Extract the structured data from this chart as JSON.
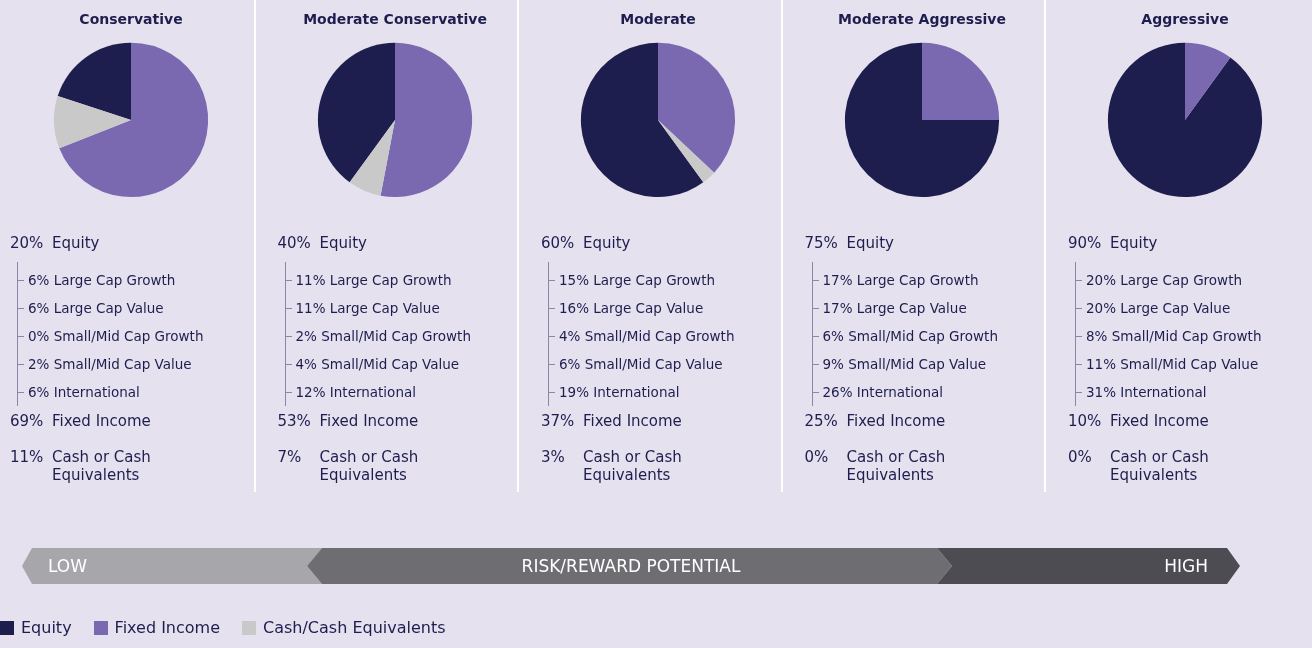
{
  "chart_data": [
    {
      "type": "pie",
      "title": "Conservative",
      "categories": [
        "Equity",
        "Fixed Income",
        "Cash/Cash Equivalents"
      ],
      "values": [
        20,
        69,
        11
      ],
      "colors": [
        "#1d1e4e",
        "#7a68b0",
        "#c9c9c9"
      ],
      "legend": "bottom",
      "annotations": [
        "20% Equity",
        "6% Large Cap Growth",
        "6% Large Cap Value",
        "0% Small/Mid Cap Growth",
        "2% Small/Mid Cap Value",
        "6% International",
        "69% Fixed Income",
        "11% Cash or Cash Equivalents"
      ]
    },
    {
      "type": "pie",
      "title": "Moderate Conservative",
      "categories": [
        null,
        null,
        null
      ],
      "values": [
        40,
        53,
        7
      ],
      "colors": [
        "#1d1e4e",
        "#7a68b0",
        "#c9c9c9"
      ],
      "annotations": [
        "40% Equity",
        "11% Large Cap Growth",
        "11% Large Cap Value",
        "2% Small/Mid Cap Growth",
        "4% Small/Mid Cap Value",
        "12% International",
        "53% Fixed Income",
        "7% Cash or Cash Equivalents"
      ]
    },
    {
      "type": "pie",
      "title": "Moderate",
      "categories": [
        null,
        null,
        null
      ],
      "values": [
        60,
        37,
        3
      ],
      "colors": [
        "#1d1e4e",
        "#7a68b0",
        "#c9c9c9"
      ],
      "annotations": [
        "60% Equity",
        "15% Large Cap Growth",
        "16% Large Cap Value",
        "4% Small/Mid Cap Growth",
        "6% Small/Mid Cap Value",
        "19% International",
        "37% Fixed Income",
        "3% Cash or Cash Equivalents"
      ]
    },
    {
      "type": "pie",
      "title": "Moderate Aggressive",
      "categories": [
        null,
        null,
        null
      ],
      "values": [
        75,
        25,
        0
      ],
      "colors": [
        "#1d1e4e",
        "#7a68b0",
        "#c9c9c9"
      ],
      "annotations": [
        "75% Equity",
        "17% Large Cap Growth",
        "17% Large Cap Value",
        "6% Small/Mid Cap Growth",
        "9% Small/Mid Cap Value",
        "26% International",
        "25% Fixed Income",
        "0% Cash or Cash Equivalents"
      ]
    },
    {
      "type": "pie",
      "title": "Aggressive",
      "categories": [
        null,
        null,
        null
      ],
      "values": [
        90,
        10,
        0
      ],
      "colors": [
        "#1d1e4e",
        "#7a68b0",
        "#c9c9c9"
      ],
      "annotations": [
        "90% Equity",
        "20% Large Cap Growth",
        "20% Large Cap Value",
        "8% Small/Mid Cap Growth",
        "11% Small/Mid Cap Value",
        "31% International",
        "10% Fixed Income",
        "0% Cash or Cash Equivalents"
      ]
    },
    {
      "type": "other",
      "annotations": [
        "LOW",
        "RISK/REWARD POTENTIAL",
        "HIGH"
      ]
    }
  ]
}
